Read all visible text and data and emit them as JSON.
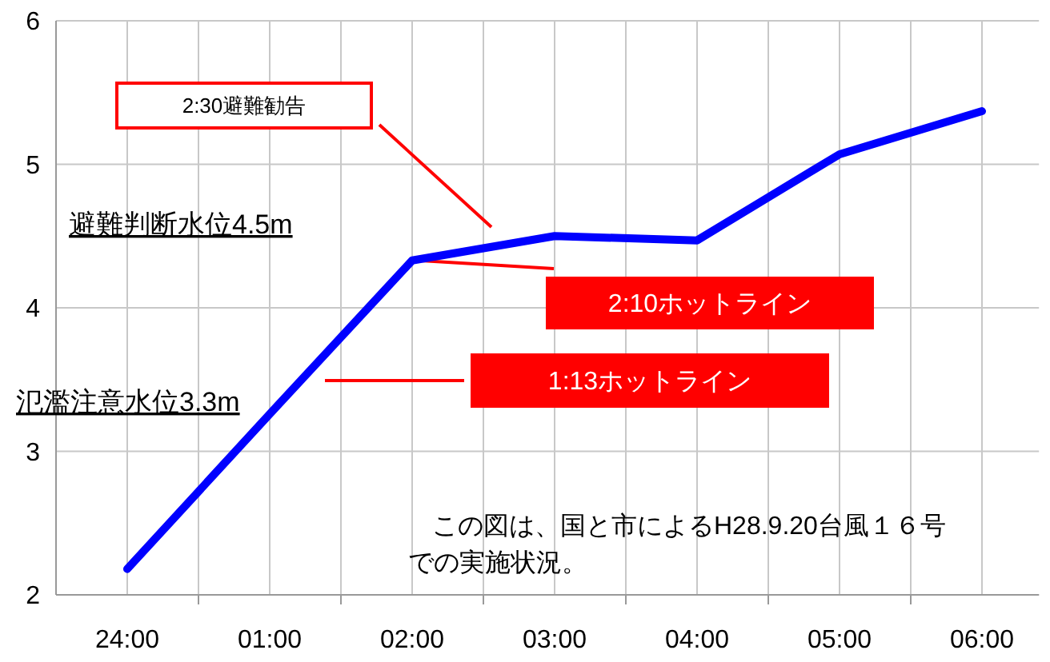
{
  "chart_data": {
    "type": "line",
    "categories": [
      "24:00",
      "01:00",
      "02:00",
      "03:00",
      "04:00",
      "05:00",
      "06:00"
    ],
    "series": [
      {
        "color": "#0000ff",
        "values": [
          2.18,
          3.26,
          4.33,
          4.5,
          4.47,
          5.07,
          5.37
        ]
      }
    ],
    "ylim": [
      2,
      6
    ],
    "yticks": [
      2,
      3,
      4,
      5,
      6
    ],
    "grid": true,
    "marker": "none",
    "line_style": "solid",
    "annotations": [
      "2:30避難勧告",
      "避難判断水位4.5m",
      "2:10ホットライン",
      "1:13ホットライン",
      "氾濫注意水位3.3m",
      "この図は、国と市によるH28.9.20台風１６号での実施状況。"
    ]
  }
}
